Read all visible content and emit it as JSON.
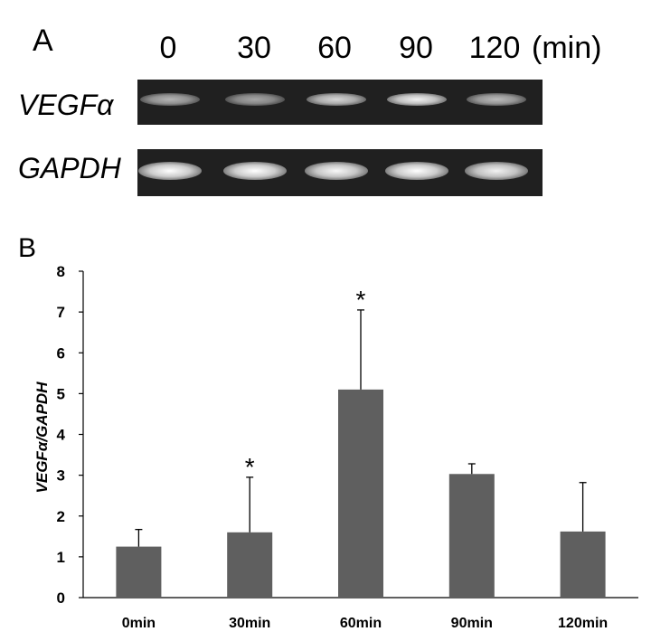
{
  "panel_a": {
    "label": "A",
    "lanes": [
      "0",
      "30",
      "60",
      "90",
      "120"
    ],
    "unit": "(min)",
    "genes": [
      "VEGFα",
      "GAPDH"
    ],
    "band_intensity": {
      "VEGFα": [
        0.45,
        0.35,
        0.7,
        0.9,
        0.5
      ],
      "GAPDH": [
        1.0,
        1.0,
        0.95,
        1.0,
        0.9
      ]
    }
  },
  "panel_b": {
    "label": "B"
  },
  "chart_data": {
    "type": "bar",
    "categories": [
      "0min",
      "30min",
      "60min",
      "90min",
      "120min"
    ],
    "values": [
      1.25,
      1.6,
      5.1,
      3.03,
      1.62
    ],
    "error": [
      0.42,
      1.35,
      1.95,
      0.25,
      1.2
    ],
    "significance": [
      "",
      "*",
      "*",
      "",
      ""
    ],
    "ylabel": "VEGFα/GAPDH",
    "xlabel": "",
    "ylim": [
      0,
      8
    ],
    "yticks": [
      0,
      1,
      2,
      3,
      4,
      5,
      6,
      7,
      8
    ],
    "grid": false,
    "colors": {
      "bar": "#5f5f5f",
      "axis": "#000000"
    }
  }
}
